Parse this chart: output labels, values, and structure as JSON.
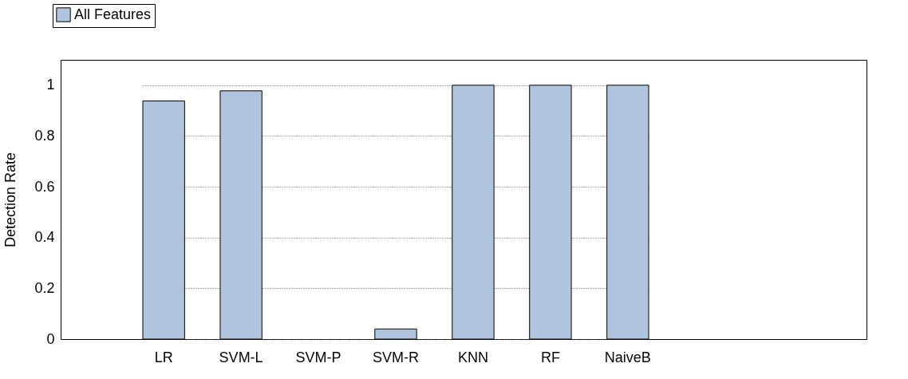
{
  "chart_data": {
    "type": "bar",
    "ylabel": "Detection Rate",
    "categories": [
      "LR",
      "SVM-L",
      "SVM-P",
      "SVM-R",
      "KNN",
      "RF",
      "NaiveB"
    ],
    "series": [
      {
        "name": "All Features",
        "color": "#b0c4de",
        "values": [
          0.938,
          0.978,
          0,
          0.04,
          1,
          1,
          1
        ]
      }
    ],
    "ylim": [
      0,
      1.1
    ],
    "yticks": [
      0,
      0.2,
      0.4,
      0.6,
      0.8,
      1
    ],
    "grid": "y",
    "legend": "top left"
  }
}
